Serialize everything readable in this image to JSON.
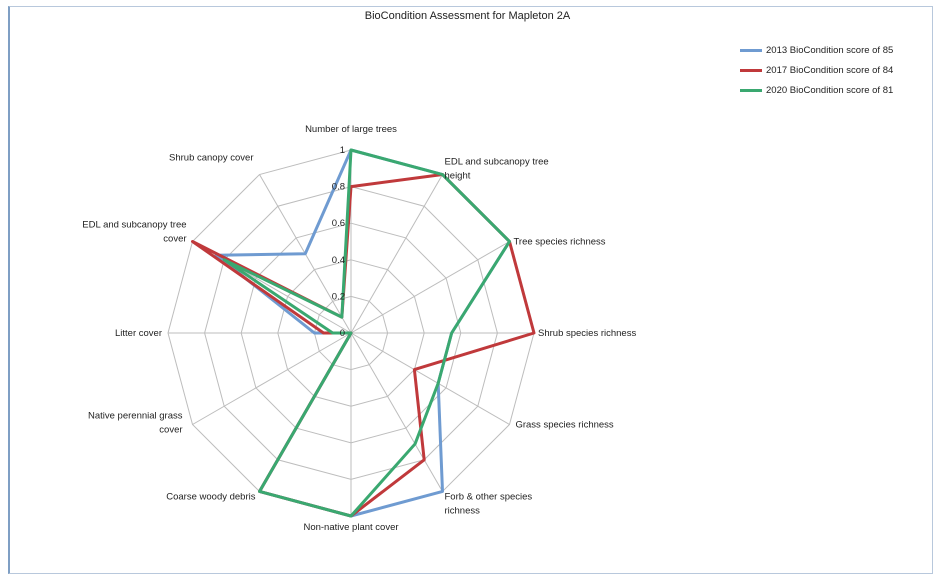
{
  "chart_data": {
    "type": "radar",
    "title": "BioCondition Assessment for Mapleton 2A",
    "axes": [
      "Number of large trees",
      "EDL and subcanopy tree height",
      "Tree species richness",
      "Shrub species richness",
      "Grass species richness",
      "Forb & other species richness",
      "Non-native plant cover",
      "Coarse woody debris",
      "Native perennial grass cover",
      "Litter cover",
      "EDL and subcanopy tree cover",
      "Shrub canopy cover"
    ],
    "ticks": [
      "0",
      "0.2",
      "0.4",
      "0.6",
      "0.8",
      "1"
    ],
    "range": [
      0,
      1
    ],
    "legend_position": "top-right",
    "series": [
      {
        "name": "2013 BioCondition score of 85",
        "color": "#6f9bd1",
        "values": [
          1,
          1,
          1,
          0.55,
          0.55,
          1,
          1,
          1,
          0,
          0.2,
          0.85,
          0.5
        ]
      },
      {
        "name": "2017 BioCondition score of 84",
        "color": "#c0393b",
        "values": [
          0.8,
          1,
          1,
          1,
          0.4,
          0.8,
          1,
          1,
          0,
          0.15,
          1,
          0.1
        ]
      },
      {
        "name": "2020 BioCondition score of 81",
        "color": "#3aa870",
        "values": [
          1,
          1,
          1,
          0.55,
          0.55,
          0.7,
          1,
          1,
          0,
          0.1,
          0.8,
          0.1
        ]
      }
    ]
  }
}
